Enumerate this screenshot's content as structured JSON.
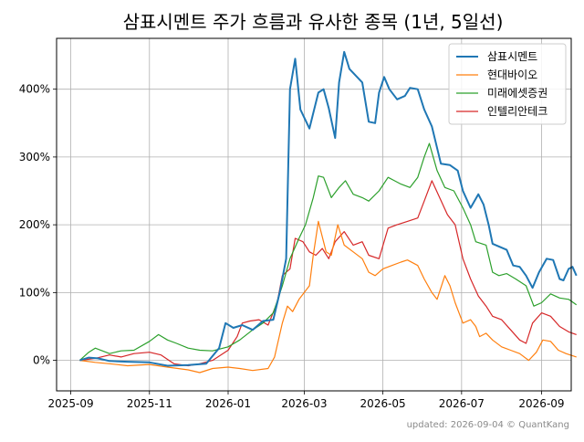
{
  "chart_data": {
    "type": "line",
    "title": "삼표시멘트 주가 흐름과 유사한 종목 (1년, 5일선)",
    "xlabel": "",
    "ylabel": "",
    "x_ticks": [
      "2025-09",
      "2025-11",
      "2026-01",
      "2026-03",
      "2026-05",
      "2026-07",
      "2026-09"
    ],
    "y_ticks": [
      "0%",
      "100%",
      "200%",
      "300%",
      "400%"
    ],
    "y_tick_values": [
      0,
      100,
      200,
      300,
      400
    ],
    "ylim": [
      -45,
      475
    ],
    "xlim": [
      "2025-08-21",
      "2026-09-24"
    ],
    "grid": true,
    "legend_position": "top-right",
    "series": [
      {
        "name": "삼표시멘트",
        "color": "#1f77b4",
        "points": [
          [
            "2025-09-08",
            0
          ],
          [
            "2025-09-15",
            4
          ],
          [
            "2025-09-22",
            3
          ],
          [
            "2025-10-01",
            -1
          ],
          [
            "2025-10-15",
            -2
          ],
          [
            "2025-11-01",
            -3
          ],
          [
            "2025-11-15",
            -8
          ],
          [
            "2025-12-01",
            -7
          ],
          [
            "2025-12-15",
            -5
          ],
          [
            "2025-12-25",
            18
          ],
          [
            "2025-12-30",
            55
          ],
          [
            "2026-01-05",
            48
          ],
          [
            "2026-01-12",
            52
          ],
          [
            "2026-01-20",
            45
          ],
          [
            "2026-01-28",
            58
          ],
          [
            "2026-02-05",
            60
          ],
          [
            "2026-02-10",
            100
          ],
          [
            "2026-02-15",
            150
          ],
          [
            "2026-02-18",
            400
          ],
          [
            "2026-02-22",
            445
          ],
          [
            "2026-02-26",
            370
          ],
          [
            "2026-03-05",
            342
          ],
          [
            "2026-03-12",
            395
          ],
          [
            "2026-03-16",
            400
          ],
          [
            "2026-03-20",
            372
          ],
          [
            "2026-03-25",
            328
          ],
          [
            "2026-03-28",
            410
          ],
          [
            "2026-04-01",
            455
          ],
          [
            "2026-04-05",
            430
          ],
          [
            "2026-04-15",
            410
          ],
          [
            "2026-04-20",
            352
          ],
          [
            "2026-04-25",
            350
          ],
          [
            "2026-04-28",
            395
          ],
          [
            "2026-05-02",
            418
          ],
          [
            "2026-05-06",
            400
          ],
          [
            "2026-05-12",
            385
          ],
          [
            "2026-05-18",
            390
          ],
          [
            "2026-05-22",
            402
          ],
          [
            "2026-05-28",
            400
          ],
          [
            "2026-06-02",
            370
          ],
          [
            "2026-06-08",
            345
          ],
          [
            "2026-06-15",
            290
          ],
          [
            "2026-06-22",
            288
          ],
          [
            "2026-06-28",
            280
          ],
          [
            "2026-07-02",
            250
          ],
          [
            "2026-07-08",
            225
          ],
          [
            "2026-07-14",
            245
          ],
          [
            "2026-07-18",
            230
          ],
          [
            "2026-07-22",
            200
          ],
          [
            "2026-07-25",
            172
          ],
          [
            "2026-07-30",
            168
          ],
          [
            "2026-08-05",
            163
          ],
          [
            "2026-08-10",
            140
          ],
          [
            "2026-08-15",
            138
          ],
          [
            "2026-08-20",
            125
          ],
          [
            "2026-08-25",
            107
          ],
          [
            "2026-08-30",
            130
          ],
          [
            "2026-09-05",
            150
          ],
          [
            "2026-09-10",
            148
          ],
          [
            "2026-09-15",
            120
          ],
          [
            "2026-09-18",
            118
          ],
          [
            "2026-09-22",
            135
          ],
          [
            "2026-09-25",
            138
          ],
          [
            "2026-09-28",
            125
          ]
        ]
      },
      {
        "name": "현대바이오",
        "color": "#ff7f0e",
        "points": [
          [
            "2025-09-08",
            0
          ],
          [
            "2025-09-20",
            -3
          ],
          [
            "2025-10-01",
            -5
          ],
          [
            "2025-10-15",
            -8
          ],
          [
            "2025-11-01",
            -6
          ],
          [
            "2025-11-15",
            -10
          ],
          [
            "2025-12-01",
            -14
          ],
          [
            "2025-12-10",
            -18
          ],
          [
            "2025-12-20",
            -12
          ],
          [
            "2026-01-01",
            -10
          ],
          [
            "2026-01-10",
            -12
          ],
          [
            "2026-01-20",
            -15
          ],
          [
            "2026-02-01",
            -12
          ],
          [
            "2026-02-06",
            5
          ],
          [
            "2026-02-12",
            55
          ],
          [
            "2026-02-16",
            80
          ],
          [
            "2026-02-20",
            72
          ],
          [
            "2026-02-25",
            90
          ],
          [
            "2026-03-05",
            110
          ],
          [
            "2026-03-08",
            155
          ],
          [
            "2026-03-12",
            205
          ],
          [
            "2026-03-18",
            160
          ],
          [
            "2026-03-22",
            155
          ],
          [
            "2026-03-27",
            200
          ],
          [
            "2026-04-01",
            170
          ],
          [
            "2026-04-08",
            160
          ],
          [
            "2026-04-15",
            150
          ],
          [
            "2026-04-20",
            130
          ],
          [
            "2026-04-25",
            125
          ],
          [
            "2026-05-01",
            135
          ],
          [
            "2026-05-08",
            140
          ],
          [
            "2026-05-15",
            145
          ],
          [
            "2026-05-20",
            148
          ],
          [
            "2026-05-28",
            140
          ],
          [
            "2026-06-02",
            120
          ],
          [
            "2026-06-08",
            100
          ],
          [
            "2026-06-12",
            90
          ],
          [
            "2026-06-18",
            125
          ],
          [
            "2026-06-22",
            110
          ],
          [
            "2026-06-26",
            85
          ],
          [
            "2026-07-02",
            55
          ],
          [
            "2026-07-08",
            60
          ],
          [
            "2026-07-12",
            50
          ],
          [
            "2026-07-15",
            35
          ],
          [
            "2026-07-20",
            40
          ],
          [
            "2026-07-25",
            30
          ],
          [
            "2026-08-01",
            20
          ],
          [
            "2026-08-08",
            15
          ],
          [
            "2026-08-15",
            10
          ],
          [
            "2026-08-22",
            0
          ],
          [
            "2026-08-28",
            12
          ],
          [
            "2026-09-02",
            30
          ],
          [
            "2026-09-08",
            28
          ],
          [
            "2026-09-14",
            15
          ],
          [
            "2026-09-20",
            10
          ],
          [
            "2026-09-28",
            5
          ]
        ]
      },
      {
        "name": "미래에셋증권",
        "color": "#2ca02c",
        "points": [
          [
            "2025-09-08",
            0
          ],
          [
            "2025-09-15",
            12
          ],
          [
            "2025-09-20",
            18
          ],
          [
            "2025-10-01",
            10
          ],
          [
            "2025-10-10",
            14
          ],
          [
            "2025-10-20",
            15
          ],
          [
            "2025-11-01",
            28
          ],
          [
            "2025-11-08",
            38
          ],
          [
            "2025-11-15",
            30
          ],
          [
            "2025-11-22",
            25
          ],
          [
            "2025-12-01",
            18
          ],
          [
            "2025-12-10",
            15
          ],
          [
            "2025-12-20",
            14
          ],
          [
            "2026-01-01",
            20
          ],
          [
            "2026-01-10",
            30
          ],
          [
            "2026-01-20",
            45
          ],
          [
            "2026-01-28",
            55
          ],
          [
            "2026-02-05",
            70
          ],
          [
            "2026-02-12",
            110
          ],
          [
            "2026-02-18",
            150
          ],
          [
            "2026-02-25",
            180
          ],
          [
            "2026-03-02",
            200
          ],
          [
            "2026-03-08",
            240
          ],
          [
            "2026-03-12",
            272
          ],
          [
            "2026-03-16",
            270
          ],
          [
            "2026-03-22",
            240
          ],
          [
            "2026-03-28",
            255
          ],
          [
            "2026-04-02",
            265
          ],
          [
            "2026-04-08",
            245
          ],
          [
            "2026-04-15",
            240
          ],
          [
            "2026-04-20",
            235
          ],
          [
            "2026-04-28",
            250
          ],
          [
            "2026-05-05",
            270
          ],
          [
            "2026-05-10",
            265
          ],
          [
            "2026-05-15",
            260
          ],
          [
            "2026-05-22",
            255
          ],
          [
            "2026-05-28",
            270
          ],
          [
            "2026-06-02",
            300
          ],
          [
            "2026-06-06",
            320
          ],
          [
            "2026-06-12",
            280
          ],
          [
            "2026-06-18",
            255
          ],
          [
            "2026-06-25",
            250
          ],
          [
            "2026-07-02",
            225
          ],
          [
            "2026-07-08",
            200
          ],
          [
            "2026-07-12",
            175
          ],
          [
            "2026-07-20",
            170
          ],
          [
            "2026-07-25",
            130
          ],
          [
            "2026-07-30",
            125
          ],
          [
            "2026-08-05",
            128
          ],
          [
            "2026-08-12",
            120
          ],
          [
            "2026-08-20",
            110
          ],
          [
            "2026-08-26",
            80
          ],
          [
            "2026-09-01",
            85
          ],
          [
            "2026-09-08",
            98
          ],
          [
            "2026-09-15",
            92
          ],
          [
            "2026-09-22",
            90
          ],
          [
            "2026-09-28",
            82
          ]
        ]
      },
      {
        "name": "인텔리안테크",
        "color": "#d62728",
        "points": [
          [
            "2025-09-08",
            0
          ],
          [
            "2025-09-20",
            3
          ],
          [
            "2025-10-01",
            8
          ],
          [
            "2025-10-10",
            5
          ],
          [
            "2025-10-20",
            10
          ],
          [
            "2025-11-01",
            12
          ],
          [
            "2025-11-10",
            8
          ],
          [
            "2025-11-20",
            -5
          ],
          [
            "2025-12-01",
            -8
          ],
          [
            "2025-12-10",
            -5
          ],
          [
            "2025-12-20",
            0
          ],
          [
            "2026-01-01",
            15
          ],
          [
            "2026-01-08",
            35
          ],
          [
            "2026-01-12",
            55
          ],
          [
            "2026-01-18",
            58
          ],
          [
            "2026-01-25",
            60
          ],
          [
            "2026-02-01",
            52
          ],
          [
            "2026-02-08",
            85
          ],
          [
            "2026-02-12",
            125
          ],
          [
            "2026-02-18",
            135
          ],
          [
            "2026-02-22",
            180
          ],
          [
            "2026-02-28",
            175
          ],
          [
            "2026-03-05",
            160
          ],
          [
            "2026-03-10",
            155
          ],
          [
            "2026-03-15",
            165
          ],
          [
            "2026-03-20",
            150
          ],
          [
            "2026-03-25",
            175
          ],
          [
            "2026-04-01",
            190
          ],
          [
            "2026-04-08",
            170
          ],
          [
            "2026-04-15",
            175
          ],
          [
            "2026-04-20",
            155
          ],
          [
            "2026-04-28",
            150
          ],
          [
            "2026-05-05",
            195
          ],
          [
            "2026-05-12",
            200
          ],
          [
            "2026-05-20",
            205
          ],
          [
            "2026-05-28",
            210
          ],
          [
            "2026-06-02",
            235
          ],
          [
            "2026-06-08",
            265
          ],
          [
            "2026-06-14",
            240
          ],
          [
            "2026-06-20",
            215
          ],
          [
            "2026-06-26",
            200
          ],
          [
            "2026-07-02",
            150
          ],
          [
            "2026-07-08",
            120
          ],
          [
            "2026-07-14",
            95
          ],
          [
            "2026-07-20",
            80
          ],
          [
            "2026-07-25",
            65
          ],
          [
            "2026-08-01",
            60
          ],
          [
            "2026-08-08",
            45
          ],
          [
            "2026-08-15",
            30
          ],
          [
            "2026-08-20",
            25
          ],
          [
            "2026-08-25",
            55
          ],
          [
            "2026-09-01",
            70
          ],
          [
            "2026-09-08",
            65
          ],
          [
            "2026-09-15",
            50
          ],
          [
            "2026-09-22",
            42
          ],
          [
            "2026-09-28",
            38
          ]
        ]
      }
    ]
  },
  "footer": {
    "updated": "updated: 2026-09-04 © QuantKang"
  }
}
